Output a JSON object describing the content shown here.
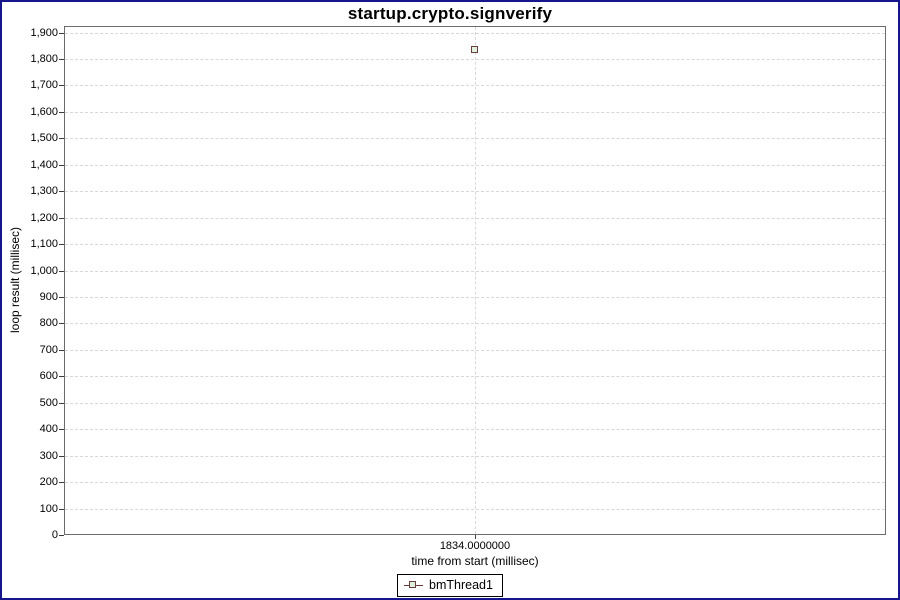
{
  "colors": {
    "window_border": "#16168c",
    "plot_border": "#6b6b6b",
    "grid": "#d8d8d8",
    "marker_border": "#6b3c3c",
    "marker_fill": "#def0de",
    "text": "#000000",
    "background": "#ffffff"
  },
  "chart_data": {
    "type": "scatter",
    "title": "startup.crypto.signverify",
    "xlabel": "time from start (millisec)",
    "ylabel": "loop result (millisec)",
    "series": [
      {
        "name": "bmThread1",
        "marker": "square",
        "points": [
          {
            "x": 1834.0,
            "y": 1834.0
          }
        ]
      }
    ],
    "x_ticks": [
      {
        "value": 1834.0,
        "label": "1834.0000000"
      }
    ],
    "y_ticks": [
      {
        "value": 0,
        "label": "0"
      },
      {
        "value": 100,
        "label": "100"
      },
      {
        "value": 200,
        "label": "200"
      },
      {
        "value": 300,
        "label": "300"
      },
      {
        "value": 400,
        "label": "400"
      },
      {
        "value": 500,
        "label": "500"
      },
      {
        "value": 600,
        "label": "600"
      },
      {
        "value": 700,
        "label": "700"
      },
      {
        "value": 800,
        "label": "800"
      },
      {
        "value": 900,
        "label": "900"
      },
      {
        "value": 1000,
        "label": "1,000"
      },
      {
        "value": 1100,
        "label": "1,100"
      },
      {
        "value": 1200,
        "label": "1,200"
      },
      {
        "value": 1300,
        "label": "1,300"
      },
      {
        "value": 1400,
        "label": "1,400"
      },
      {
        "value": 1500,
        "label": "1,500"
      },
      {
        "value": 1600,
        "label": "1,600"
      },
      {
        "value": 1700,
        "label": "1,700"
      },
      {
        "value": 1800,
        "label": "1,800"
      },
      {
        "value": 1900,
        "label": "1,900"
      }
    ],
    "ylim": [
      0,
      1925
    ],
    "xlim": [
      1833.5,
      1834.5
    ],
    "grid": "dashed",
    "legend_position": "bottom"
  },
  "legend": {
    "entries": [
      {
        "label": "bmThread1",
        "marker": "square-on-line"
      }
    ]
  }
}
